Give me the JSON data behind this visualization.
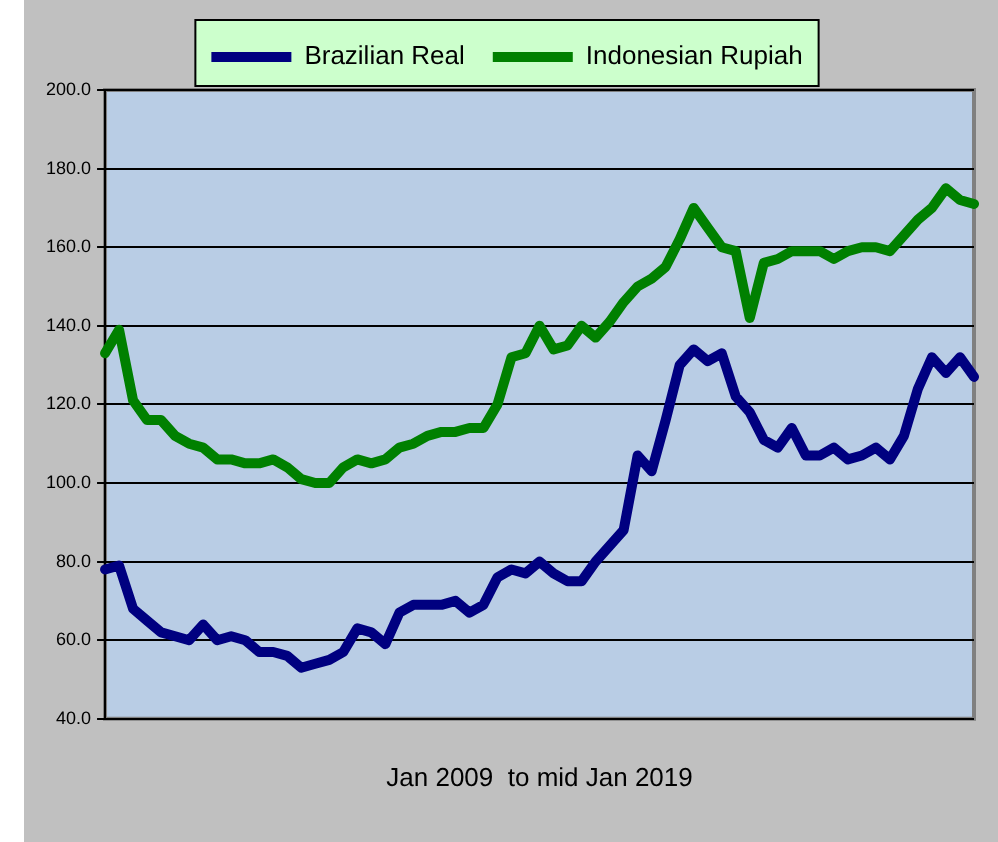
{
  "chart_data": {
    "type": "line",
    "xlabel": "Jan 2009  to mid Jan 2019",
    "categories": [
      null,
      null,
      null,
      null,
      null,
      null,
      null,
      null,
      null,
      null,
      null,
      null,
      null,
      null,
      null,
      null,
      null,
      null,
      null,
      null,
      null,
      null,
      null,
      null,
      null,
      null,
      null,
      null,
      null,
      null,
      null,
      null,
      null,
      null,
      null,
      null,
      null,
      null,
      null,
      null,
      null,
      null,
      null,
      null,
      null,
      null,
      null,
      null,
      null,
      null,
      null,
      null,
      null,
      null,
      null,
      null,
      null,
      null,
      null,
      null,
      null,
      null,
      null
    ],
    "series": [
      {
        "name": "Brazilian Real",
        "color": "#000080",
        "values": [
          78,
          79,
          68,
          65,
          62,
          61,
          60,
          64,
          60,
          61,
          60,
          57,
          57,
          56,
          53,
          54,
          55,
          57,
          63,
          62,
          59,
          67,
          69,
          69,
          69,
          70,
          67,
          69,
          76,
          78,
          77,
          80,
          77,
          75,
          75,
          80,
          84,
          88,
          107,
          103,
          116,
          130,
          134,
          131,
          133,
          122,
          118,
          111,
          109,
          114,
          107,
          107,
          109,
          106,
          107,
          109,
          106,
          112,
          124,
          132,
          128,
          132,
          127
        ]
      },
      {
        "name": "Indonesian Rupiah",
        "color": "#008000",
        "values": [
          133,
          139,
          121,
          116,
          116,
          112,
          110,
          109,
          106,
          106,
          105,
          105,
          106,
          104,
          101,
          100,
          100,
          104,
          106,
          105,
          106,
          109,
          110,
          112,
          113,
          113,
          114,
          114,
          120,
          132,
          133,
          140,
          134,
          135,
          140,
          137,
          141,
          146,
          150,
          152,
          155,
          162,
          170,
          165,
          160,
          159,
          142,
          156,
          157,
          159,
          159,
          159,
          157,
          159,
          160,
          160,
          159,
          163,
          167,
          170,
          175,
          172,
          171
        ]
      }
    ],
    "ylim": [
      40,
      200
    ],
    "yticks": [
      {
        "value": 40,
        "label": "40.0"
      },
      {
        "value": 60,
        "label": "60.0"
      },
      {
        "value": 80,
        "label": "80.0"
      },
      {
        "value": 100,
        "label": "100.0"
      },
      {
        "value": 120,
        "label": "120.0"
      },
      {
        "value": 140,
        "label": "140.0"
      },
      {
        "value": 160,
        "label": "160.0"
      },
      {
        "value": 180,
        "label": "180.0"
      },
      {
        "value": 200,
        "label": "200.0"
      }
    ],
    "grid": "y",
    "legend": "top",
    "marker": "none",
    "line_style": "solid"
  }
}
